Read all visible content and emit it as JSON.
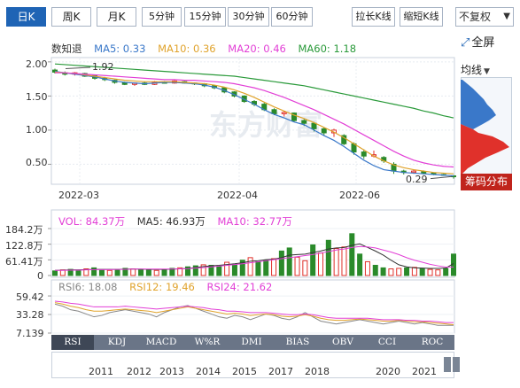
{
  "toolbar": {
    "period_tabs": [
      {
        "label": "日K",
        "active": true
      },
      {
        "label": "周K",
        "active": false
      },
      {
        "label": "月K",
        "active": false
      },
      {
        "label": "5分钟",
        "active": false
      },
      {
        "label": "15分钟",
        "active": false
      },
      {
        "label": "30分钟",
        "active": false
      },
      {
        "label": "60分钟",
        "active": false
      }
    ],
    "stretch_label": "拉长K线",
    "shrink_label": "缩短K线",
    "adjust_selected": "不复权",
    "fullscreen_label": "全屏"
  },
  "ma_legend": {
    "prefix": "数知退",
    "items": [
      {
        "text": "MA5: 0.33",
        "color": "#3a78c9"
      },
      {
        "text": "MA10: 0.36",
        "color": "#e0a32c"
      },
      {
        "text": "MA20: 0.46",
        "color": "#e23fd6"
      },
      {
        "text": "MA60: 1.18",
        "color": "#2a9a3a"
      }
    ]
  },
  "right_panel": {
    "tab_label": "均线",
    "chip_label": "筹码分布"
  },
  "vol_legend": {
    "items": [
      {
        "text": "VOL: 84.37万",
        "color": "#e23fd6"
      },
      {
        "text": "MA5: 46.93万",
        "color": "#333333"
      },
      {
        "text": "MA10: 32.77万",
        "color": "#e23fd6"
      }
    ]
  },
  "rsi_legend": {
    "items": [
      {
        "text": "RSI6: 18.08",
        "color": "#888888"
      },
      {
        "text": "RSI12: 19.46",
        "color": "#e0a32c"
      },
      {
        "text": "RSI24: 21.62",
        "color": "#e23fd6"
      }
    ]
  },
  "indicator_tabs": [
    {
      "label": "RSI",
      "active": true
    },
    {
      "label": "KDJ",
      "active": false
    },
    {
      "label": "MACD",
      "active": false
    },
    {
      "label": "W%R",
      "active": false
    },
    {
      "label": "DMI",
      "active": false
    },
    {
      "label": "BIAS",
      "active": false
    },
    {
      "label": "OBV",
      "active": false
    },
    {
      "label": "CCI",
      "active": false
    },
    {
      "label": "ROC",
      "active": false
    }
  ],
  "overview_years": [
    "2011",
    "2012",
    "2013",
    "2014",
    "2015",
    "2017",
    "2018",
    "2020",
    "2021"
  ],
  "watermark": "东方财富",
  "colors": {
    "up": "#e0312b",
    "down": "#2a8a2a",
    "ma5": "#3a78c9",
    "ma10": "#e0a32c",
    "ma20": "#e23fd6",
    "ma60": "#2a9a3a"
  },
  "chart_data": [
    {
      "type": "candlestick",
      "title": "",
      "y_ticks": [
        "2.00",
        "1.50",
        "1.00",
        "0.50"
      ],
      "y_tick_values": [
        2.0,
        1.5,
        1.0,
        0.5
      ],
      "x_ticks": [
        "2022-03",
        "2022-04",
        "2022-06"
      ],
      "ylim": [
        0.22,
        2.05
      ],
      "annotations": [
        {
          "text": "1.92",
          "value": 1.92
        },
        {
          "text": "0.29",
          "value": 0.29
        }
      ],
      "series_ma": {
        "MA5": [
          1.86,
          1.84,
          1.82,
          1.8,
          1.78,
          1.75,
          1.72,
          1.7,
          1.69,
          1.68,
          1.69,
          1.7,
          1.7,
          1.69,
          1.68,
          1.66,
          1.63,
          1.58,
          1.52,
          1.45,
          1.38,
          1.3,
          1.23,
          1.18,
          1.12,
          1.08,
          1.0,
          0.92,
          0.85,
          0.76,
          0.66,
          0.56,
          0.48,
          0.42,
          0.4,
          0.38,
          0.37,
          0.36,
          0.35,
          0.34,
          0.33
        ],
        "MA10": [
          1.85,
          1.84,
          1.83,
          1.81,
          1.79,
          1.77,
          1.75,
          1.73,
          1.72,
          1.71,
          1.71,
          1.71,
          1.71,
          1.7,
          1.69,
          1.68,
          1.66,
          1.63,
          1.59,
          1.54,
          1.48,
          1.41,
          1.34,
          1.28,
          1.22,
          1.17,
          1.11,
          1.04,
          0.97,
          0.89,
          0.8,
          0.71,
          0.62,
          0.55,
          0.49,
          0.45,
          0.42,
          0.4,
          0.38,
          0.37,
          0.36
        ],
        "MA20": [
          1.84,
          1.84,
          1.83,
          1.82,
          1.81,
          1.8,
          1.79,
          1.78,
          1.77,
          1.76,
          1.75,
          1.74,
          1.74,
          1.73,
          1.73,
          1.72,
          1.71,
          1.7,
          1.68,
          1.65,
          1.62,
          1.58,
          1.53,
          1.48,
          1.42,
          1.36,
          1.3,
          1.23,
          1.16,
          1.09,
          1.01,
          0.93,
          0.85,
          0.77,
          0.69,
          0.62,
          0.56,
          0.52,
          0.49,
          0.47,
          0.46
        ],
        "MA60": [
          1.97,
          1.96,
          1.95,
          1.94,
          1.93,
          1.92,
          1.91,
          1.9,
          1.89,
          1.88,
          1.87,
          1.86,
          1.85,
          1.84,
          1.83,
          1.82,
          1.81,
          1.8,
          1.79,
          1.77,
          1.75,
          1.73,
          1.71,
          1.69,
          1.67,
          1.65,
          1.62,
          1.59,
          1.56,
          1.53,
          1.5,
          1.47,
          1.44,
          1.41,
          1.38,
          1.35,
          1.32,
          1.28,
          1.25,
          1.21,
          1.18
        ]
      },
      "candles": [
        [
          1.88,
          1.85,
          1.9,
          1.83
        ],
        [
          1.84,
          1.82,
          1.86,
          1.8
        ],
        [
          1.82,
          1.84,
          1.85,
          1.8
        ],
        [
          1.83,
          1.79,
          1.84,
          1.78
        ],
        [
          1.8,
          1.76,
          1.81,
          1.74
        ],
        [
          1.76,
          1.74,
          1.78,
          1.72
        ],
        [
          1.73,
          1.7,
          1.74,
          1.68
        ],
        [
          1.7,
          1.67,
          1.71,
          1.66
        ],
        [
          1.67,
          1.69,
          1.7,
          1.65
        ],
        [
          1.69,
          1.67,
          1.71,
          1.66
        ],
        [
          1.67,
          1.7,
          1.72,
          1.66
        ],
        [
          1.7,
          1.69,
          1.72,
          1.68
        ],
        [
          1.69,
          1.72,
          1.73,
          1.68
        ],
        [
          1.71,
          1.69,
          1.72,
          1.68
        ],
        [
          1.69,
          1.68,
          1.7,
          1.66
        ],
        [
          1.68,
          1.65,
          1.69,
          1.63
        ],
        [
          1.65,
          1.62,
          1.66,
          1.6
        ],
        [
          1.62,
          1.56,
          1.63,
          1.54
        ],
        [
          1.56,
          1.5,
          1.57,
          1.48
        ],
        [
          1.5,
          1.42,
          1.51,
          1.4
        ],
        [
          1.42,
          1.38,
          1.44,
          1.35
        ],
        [
          1.38,
          1.3,
          1.4,
          1.28
        ],
        [
          1.3,
          1.24,
          1.32,
          1.22
        ],
        [
          1.24,
          1.26,
          1.28,
          1.2
        ],
        [
          1.25,
          1.14,
          1.26,
          1.12
        ],
        [
          1.14,
          1.1,
          1.16,
          1.06
        ],
        [
          1.1,
          1.02,
          1.12,
          0.98
        ],
        [
          1.02,
          0.96,
          1.04,
          0.92
        ],
        [
          0.96,
          1.0,
          1.02,
          0.9
        ],
        [
          0.92,
          0.8,
          0.94,
          0.78
        ],
        [
          0.8,
          0.68,
          0.82,
          0.64
        ],
        [
          0.68,
          0.62,
          0.72,
          0.58
        ],
        [
          0.62,
          0.64,
          0.7,
          0.6
        ],
        [
          0.6,
          0.55,
          0.62,
          0.52
        ],
        [
          0.5,
          0.4,
          0.53,
          0.36
        ],
        [
          0.4,
          0.38,
          0.42,
          0.35
        ],
        [
          0.38,
          0.4,
          0.42,
          0.36
        ],
        [
          0.39,
          0.37,
          0.41,
          0.35
        ],
        [
          0.37,
          0.36,
          0.38,
          0.34
        ],
        [
          0.35,
          0.34,
          0.36,
          0.33
        ],
        [
          0.33,
          0.32,
          0.34,
          0.29
        ]
      ]
    },
    {
      "type": "bar",
      "title": "VOL",
      "y_ticks": [
        "184.2万",
        "122.8万",
        "61.41万",
        "0"
      ],
      "y_tick_values": [
        184.2,
        122.8,
        61.41,
        0
      ],
      "ylim": [
        0,
        184.2
      ],
      "values": [
        18,
        22,
        24,
        20,
        26,
        30,
        22,
        20,
        24,
        28,
        26,
        24,
        22,
        20,
        24,
        28,
        30,
        34,
        38,
        42,
        40,
        36,
        52,
        44,
        60,
        70,
        54,
        60,
        66,
        96,
        108,
        72,
        58,
        120,
        88,
        138,
        106,
        112,
        164,
        84,
        54,
        40,
        30,
        26,
        28,
        30,
        32,
        26,
        24,
        22,
        28,
        84
      ],
      "ma5": [
        20,
        21,
        22,
        22,
        23,
        24,
        24,
        24,
        24,
        25,
        25,
        25,
        24,
        24,
        24,
        25,
        26,
        28,
        31,
        35,
        38,
        40,
        43,
        46,
        50,
        56,
        58,
        62,
        64,
        70,
        80,
        82,
        84,
        90,
        96,
        104,
        108,
        110,
        118,
        124,
        110,
        96,
        80,
        60,
        42,
        34,
        30,
        29,
        28,
        28,
        29,
        47
      ],
      "ma10": [
        20,
        20,
        21,
        21,
        22,
        23,
        23,
        23,
        24,
        24,
        25,
        25,
        25,
        25,
        25,
        25,
        26,
        27,
        29,
        31,
        34,
        37,
        40,
        43,
        46,
        50,
        54,
        58,
        62,
        66,
        70,
        74,
        78,
        82,
        88,
        94,
        100,
        104,
        110,
        114,
        112,
        108,
        100,
        92,
        82,
        70,
        60,
        52,
        44,
        38,
        33,
        33
      ]
    },
    {
      "type": "line",
      "title": "RSI",
      "y_ticks": [
        "59.42",
        "33.28",
        "7.139"
      ],
      "y_tick_values": [
        59.42,
        33.28,
        7.139
      ],
      "ylim": [
        7.139,
        62
      ],
      "series": [
        {
          "name": "RSI6",
          "values": [
            48,
            45,
            40,
            38,
            34,
            30,
            32,
            36,
            38,
            40,
            38,
            36,
            34,
            30,
            36,
            40,
            44,
            46,
            42,
            38,
            34,
            30,
            28,
            32,
            30,
            26,
            30,
            34,
            32,
            28,
            26,
            30,
            36,
            30,
            24,
            22,
            20,
            22,
            24,
            26,
            24,
            22,
            20,
            22,
            24,
            22,
            20,
            22,
            20,
            18,
            18,
            18
          ]
        },
        {
          "name": "RSI12",
          "values": [
            50,
            48,
            45,
            43,
            40,
            38,
            38,
            39,
            40,
            41,
            40,
            39,
            38,
            36,
            38,
            40,
            42,
            44,
            42,
            40,
            38,
            36,
            34,
            35,
            34,
            32,
            33,
            34,
            33,
            31,
            30,
            31,
            33,
            31,
            28,
            26,
            25,
            25,
            26,
            27,
            26,
            25,
            24,
            24,
            25,
            24,
            23,
            23,
            22,
            21,
            20,
            19
          ]
        },
        {
          "name": "RSI24",
          "values": [
            52,
            51,
            49,
            48,
            46,
            44,
            44,
            44,
            44,
            45,
            44,
            43,
            42,
            41,
            42,
            43,
            44,
            45,
            44,
            43,
            41,
            40,
            38,
            38,
            37,
            36,
            36,
            36,
            35,
            34,
            33,
            33,
            34,
            33,
            31,
            29,
            28,
            28,
            28,
            28,
            28,
            27,
            26,
            26,
            26,
            25,
            25,
            24,
            24,
            23,
            22,
            22
          ]
        }
      ]
    }
  ]
}
